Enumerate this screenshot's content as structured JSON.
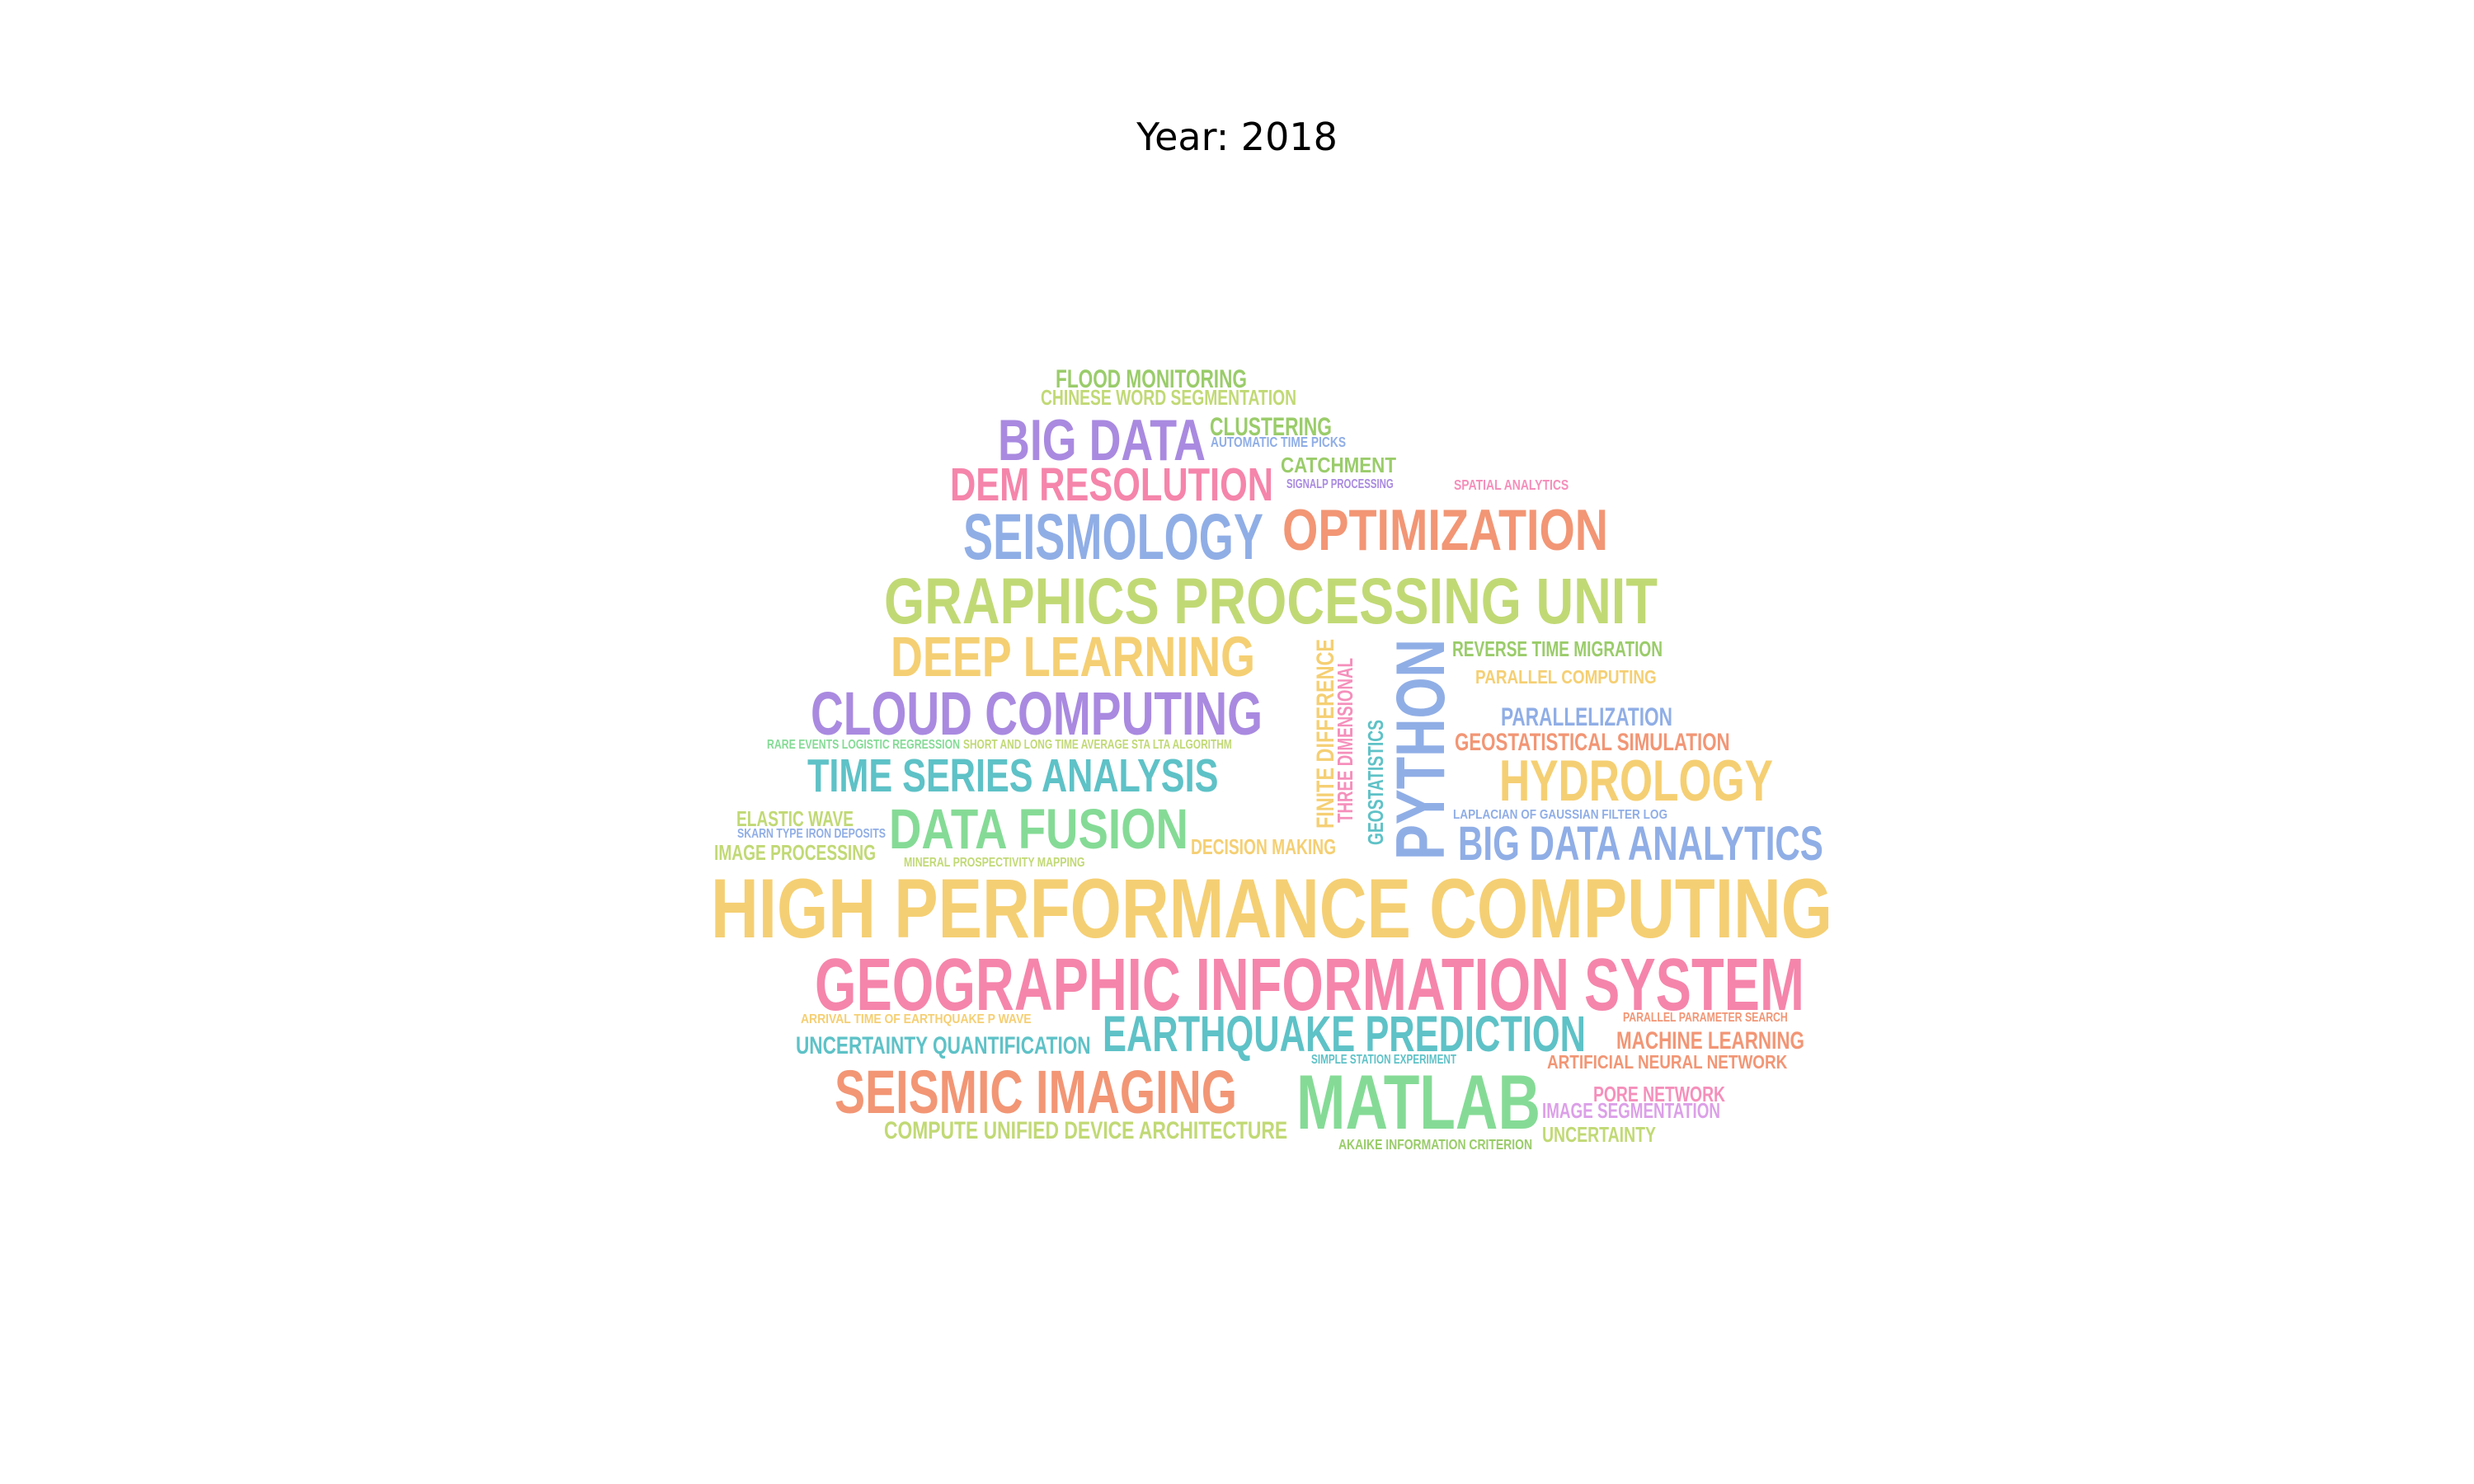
{
  "title": "Year: 2018",
  "palette": {
    "yellow": "#f5cf73",
    "pink": "#f585ab",
    "lime": "#c1d975",
    "purple": "#a98ae0",
    "blue": "#90aee6",
    "orange": "#f29675",
    "teal": "#5ec2c7",
    "green": "#85db96",
    "olive": "#9acc6a",
    "rose": "#f58fbb",
    "lilac": "#dca0e8"
  },
  "words": [
    {
      "text": "HIGH PERFORMANCE COMPUTING",
      "color": "#f5cf73"
    },
    {
      "text": "GEOGRAPHIC INFORMATION SYSTEM",
      "color": "#f585ab"
    },
    {
      "text": "GRAPHICS PROCESSING UNIT",
      "color": "#c1d975"
    },
    {
      "text": "CLOUD COMPUTING",
      "color": "#a98ae0"
    },
    {
      "text": "DEEP LEARNING",
      "color": "#f5cf73"
    },
    {
      "text": "SEISMOLOGY",
      "color": "#90aee6"
    },
    {
      "text": "OPTIMIZATION",
      "color": "#f29675"
    },
    {
      "text": "DEM RESOLUTION",
      "color": "#f585ab"
    },
    {
      "text": "BIG DATA",
      "color": "#a98ae0"
    },
    {
      "text": "PYTHON",
      "color": "#90aee6"
    },
    {
      "text": "HYDROLOGY",
      "color": "#f5cf73"
    },
    {
      "text": "TIME SERIES ANALYSIS",
      "color": "#5ec2c7"
    },
    {
      "text": "DATA FUSION",
      "color": "#85db96"
    },
    {
      "text": "BIG DATA ANALYTICS",
      "color": "#90aee6"
    },
    {
      "text": "EARTHQUAKE PREDICTION",
      "color": "#5ec2c7"
    },
    {
      "text": "SEISMIC IMAGING",
      "color": "#f29675"
    },
    {
      "text": "MATLAB",
      "color": "#85db96"
    },
    {
      "text": "FLOOD MONITORING",
      "color": "#9acc6a"
    },
    {
      "text": "CHINESE WORD SEGMENTATION",
      "color": "#c1d975"
    },
    {
      "text": "CLUSTERING",
      "color": "#9acc6a"
    },
    {
      "text": "AUTOMATIC TIME PICKS",
      "color": "#90aee6"
    },
    {
      "text": "CATCHMENT",
      "color": "#9acc6a"
    },
    {
      "text": "SIGNALP PROCESSING",
      "color": "#a98ae0"
    },
    {
      "text": "SPATIAL ANALYTICS",
      "color": "#f58fbb"
    },
    {
      "text": "REVERSE TIME MIGRATION",
      "color": "#9acc6a"
    },
    {
      "text": "PARALLEL COMPUTING",
      "color": "#f5cf73"
    },
    {
      "text": "PARALLELIZATION",
      "color": "#90aee6"
    },
    {
      "text": "GEOSTATISTICAL SIMULATION",
      "color": "#f29675"
    },
    {
      "text": "FINITE DIFFERENCE",
      "color": "#f5cf73"
    },
    {
      "text": "THREE DIMENSIONAL",
      "color": "#f58fbb"
    },
    {
      "text": "GEOSTATISTICS",
      "color": "#5ec2c7"
    },
    {
      "text": "RARE EVENTS LOGISTIC REGRESSION",
      "color": "#85db96"
    },
    {
      "text": "SHORT AND LONG TIME AVERAGE STA LTA ALGORITHM",
      "color": "#c1d975"
    },
    {
      "text": "ELASTIC WAVE",
      "color": "#c1d975"
    },
    {
      "text": "SKARN TYPE IRON DEPOSITS",
      "color": "#90aee6"
    },
    {
      "text": "IMAGE PROCESSING",
      "color": "#c1d975"
    },
    {
      "text": "MINERAL PROSPECTIVITY MAPPING",
      "color": "#c1d975"
    },
    {
      "text": "DECISION MAKING",
      "color": "#f5cf73"
    },
    {
      "text": "LAPLACIAN OF GAUSSIAN FILTER LOG",
      "color": "#90aee6"
    },
    {
      "text": "ARRIVAL TIME OF EARTHQUAKE P WAVE",
      "color": "#f5cf73"
    },
    {
      "text": "PARALLEL PARAMETER SEARCH",
      "color": "#f29675"
    },
    {
      "text": "UNCERTAINTY QUANTIFICATION",
      "color": "#5ec2c7"
    },
    {
      "text": "MACHINE LEARNING",
      "color": "#f29675"
    },
    {
      "text": "SIMPLE STATION EXPERIMENT",
      "color": "#5ec2c7"
    },
    {
      "text": "ARTIFICIAL NEURAL NETWORK",
      "color": "#f29675"
    },
    {
      "text": "PORE NETWORK",
      "color": "#f58fbb"
    },
    {
      "text": "IMAGE SEGMENTATION",
      "color": "#dca0e8"
    },
    {
      "text": "COMPUTE UNIFIED DEVICE ARCHITECTURE",
      "color": "#c1d975"
    },
    {
      "text": "AKAIKE INFORMATION CRITERION",
      "color": "#9acc6a"
    },
    {
      "text": "UNCERTAINTY",
      "color": "#c1d975"
    }
  ]
}
